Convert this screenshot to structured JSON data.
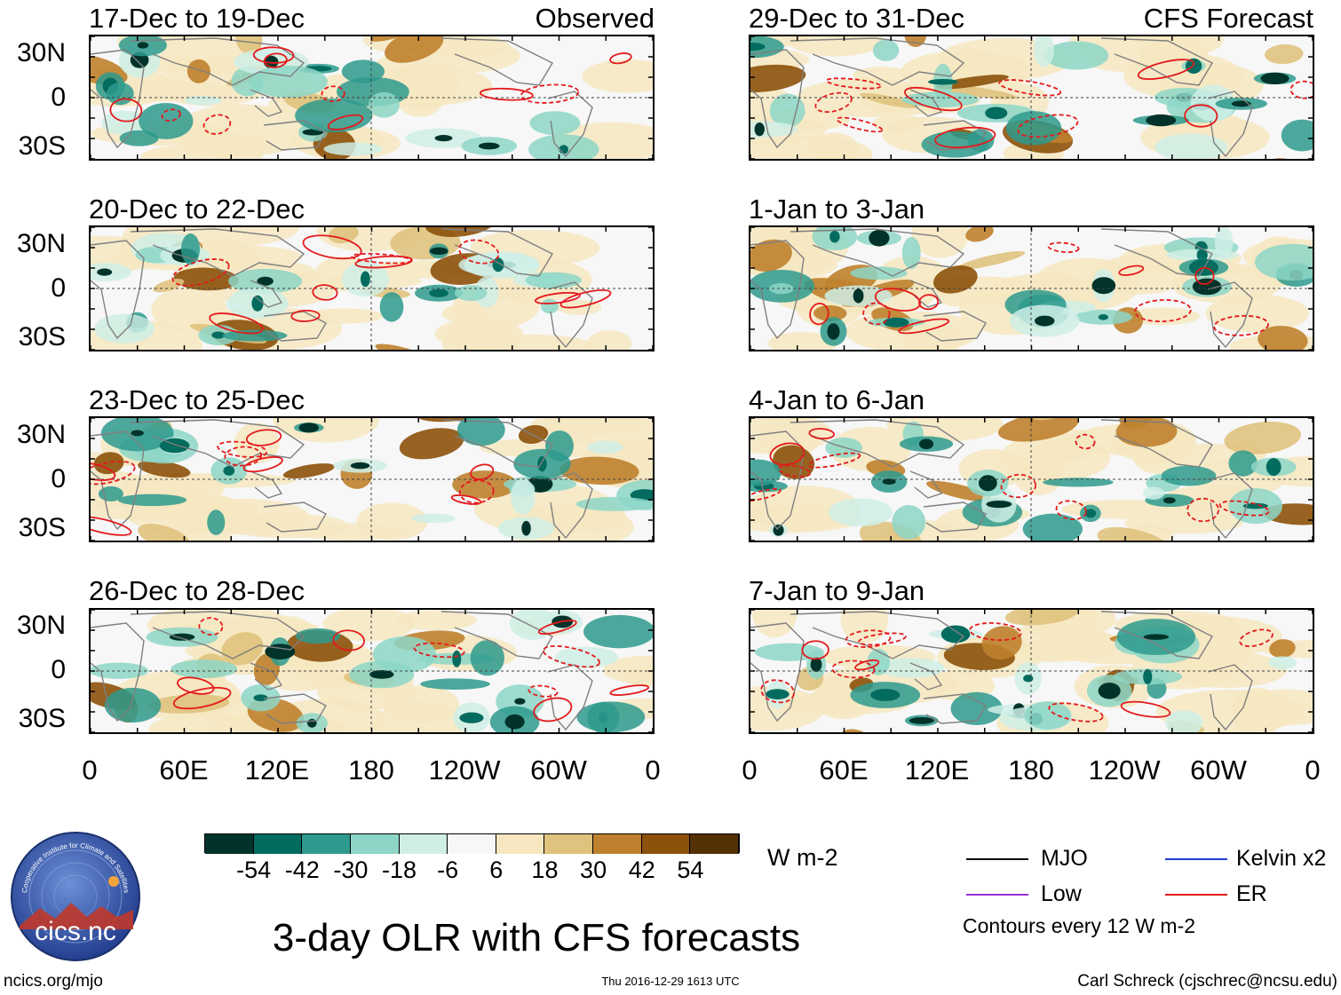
{
  "header": {
    "left_label": "Observed",
    "right_label": "CFS Forecast"
  },
  "panels_left": [
    {
      "title": "17-Dec to 19-Dec"
    },
    {
      "title": "20-Dec to 22-Dec"
    },
    {
      "title": "23-Dec to 25-Dec"
    },
    {
      "title": "26-Dec to 28-Dec"
    }
  ],
  "panels_right": [
    {
      "title": "29-Dec to 31-Dec"
    },
    {
      "title": "1-Jan to 3-Jan"
    },
    {
      "title": "4-Jan to 6-Jan"
    },
    {
      "title": "7-Jan to 9-Jan"
    }
  ],
  "lat_labels": [
    "30N",
    "0",
    "30S"
  ],
  "lon_labels": [
    "0",
    "60E",
    "120E",
    "180",
    "120W",
    "60W",
    "0"
  ],
  "colorbar": {
    "units": "W m-2",
    "tick_labels": [
      "-54",
      "-42",
      "-30",
      "-18",
      "-6",
      "6",
      "18",
      "30",
      "42",
      "54"
    ],
    "colors": [
      "#01332b",
      "#046b5f",
      "#2e9a8d",
      "#8dd6c7",
      "#cfeee6",
      "#f7f7f7",
      "#f6e7c1",
      "#dfc27d",
      "#bf812d",
      "#8c510a",
      "#543005"
    ]
  },
  "legend": {
    "items": [
      {
        "label": "MJO",
        "color": "#000000"
      },
      {
        "label": "Kelvin x2",
        "color": "#1f3fd1"
      },
      {
        "label": "Low",
        "color": "#9b30d9"
      },
      {
        "label": "ER",
        "color": "#e31a1c"
      }
    ],
    "note": "Contours every 12 W m-2"
  },
  "main_title": "3-day OLR with CFS forecasts",
  "footer": {
    "website": "ncics.org/mjo",
    "timestamp": "Thu 2016-12-29 1613 UTC",
    "author": "Carl Schreck (cjschrec@ncsu.edu)"
  },
  "logo": {
    "text": "cics.nc",
    "arc_text": "Cooperative Institute for Climate and Satellites"
  }
}
